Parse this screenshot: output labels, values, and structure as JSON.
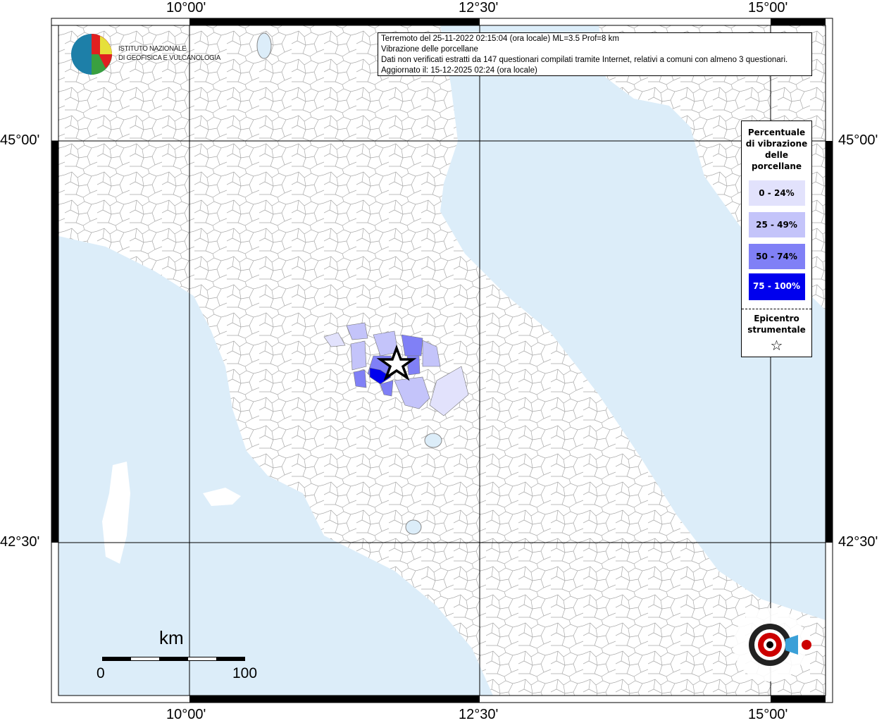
{
  "info": {
    "line1": "Terremoto del 25-11-2022 02:15:04 (ora locale) ML=3.5 Prof=8 km",
    "line2": "Vibrazione delle porcellane",
    "line3": "Dati non verificati estratti da 147 questionari compilati tramite Internet, relativi a comuni con almeno 3 questionari.",
    "line4": "Aggiornato il: 15-12-2025 02:24 (ora locale)"
  },
  "axes": {
    "lon_labels": [
      "10°00'",
      "12°30'",
      "15°00'"
    ],
    "lat_labels": [
      "45°00'",
      "42°30'"
    ]
  },
  "legend": {
    "title": [
      "Percentuale",
      "di vibrazione",
      "delle",
      "porcellane"
    ],
    "classes": [
      {
        "label": "0 - 24%",
        "color": "#e2e2fc",
        "text_color": "#000000"
      },
      {
        "label": "25 - 49%",
        "color": "#c4c4fa",
        "text_color": "#000000"
      },
      {
        "label": "50 - 74%",
        "color": "#8080f6",
        "text_color": "#000000"
      },
      {
        "label": "75 - 100%",
        "color": "#0000ee",
        "text_color": "#ffffff"
      }
    ],
    "epicenter_label": [
      "Epicentro",
      "strumentale"
    ],
    "epicenter_icon": "star-outline-icon"
  },
  "logos": {
    "ingv": "ISTITUTO NAZIONALE DI GEOFISICA E VULCANOLOGIA",
    "sentito": "www.haisentitoilterremoto.it"
  },
  "ingv_line1": "ISTITUTO NAZIONALE",
  "ingv_line2": "DI GEOFISICA E VULCANOLOGIA",
  "scale": {
    "unit": "km",
    "min": "0",
    "max": "100"
  },
  "colors": {
    "sea": "#dcedf9",
    "land": "#ffffff",
    "borders": "#9a9a9a"
  }
}
